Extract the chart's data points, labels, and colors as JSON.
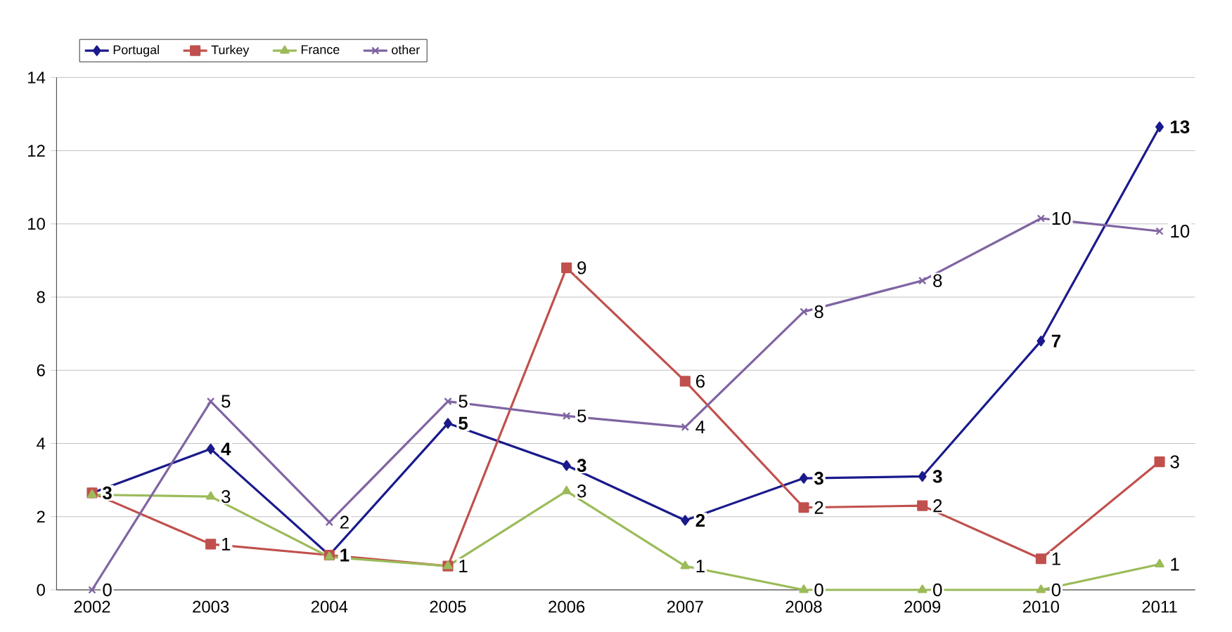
{
  "chart_data": {
    "type": "line",
    "categories": [
      "2002",
      "2003",
      "2004",
      "2005",
      "2006",
      "2007",
      "2008",
      "2009",
      "2010",
      "2011"
    ],
    "ylim": [
      0,
      14
    ],
    "yticks": [
      0,
      2,
      4,
      6,
      8,
      10,
      12,
      14
    ],
    "grid": "y",
    "legend": "top left",
    "line_style": "solid",
    "series": [
      {
        "name": "Portugal",
        "color": "#1a1a8c",
        "marker": "diamond",
        "values": [
          2.65,
          3.85,
          0.95,
          4.55,
          3.4,
          1.9,
          3.05,
          3.1,
          6.8,
          12.65
        ],
        "value_labels": [
          "3",
          "4",
          "1",
          "5",
          "3",
          "2",
          "3",
          "3",
          "7",
          "13"
        ]
      },
      {
        "name": "Turkey",
        "color": "#c0504d",
        "marker": "square",
        "values": [
          2.65,
          1.25,
          0.95,
          0.65,
          8.8,
          5.7,
          2.25,
          2.3,
          0.85,
          3.5
        ],
        "value_labels": [
          null,
          "1",
          null,
          "1",
          "9",
          "6",
          "2",
          "2",
          "1",
          "3"
        ]
      },
      {
        "name": "France",
        "color": "#9bbb59",
        "marker": "triangle",
        "values": [
          2.6,
          2.55,
          0.9,
          0.65,
          2.7,
          0.65,
          0,
          0,
          0,
          0.7
        ],
        "value_labels": [
          null,
          "3",
          null,
          null,
          "3",
          "1",
          "0",
          "0",
          "0",
          "1"
        ]
      },
      {
        "name": "other",
        "color": "#8064a2",
        "marker": "cross",
        "values": [
          0,
          5.15,
          1.85,
          5.15,
          4.75,
          4.45,
          7.6,
          8.45,
          10.15,
          9.8
        ],
        "value_labels": [
          "0",
          "5",
          "2",
          "5",
          "5",
          "4",
          "8",
          "8",
          "10",
          "10"
        ]
      }
    ]
  }
}
